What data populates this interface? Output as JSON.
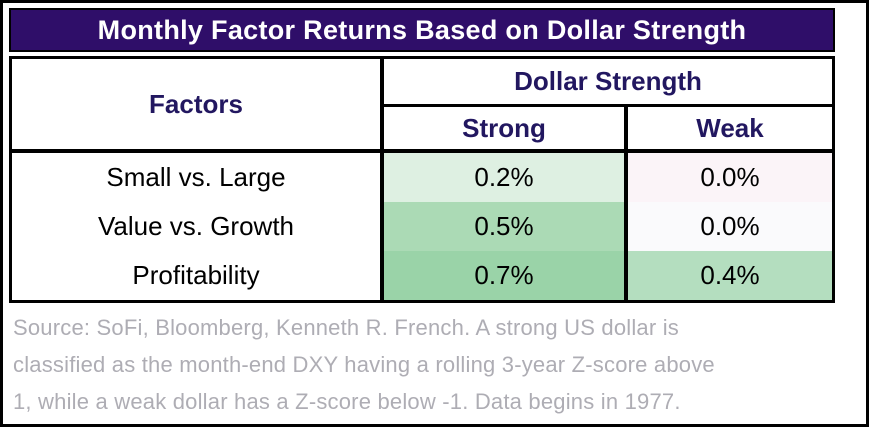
{
  "title_bar": {
    "text": "Monthly Factor Returns Based on Dollar Strength",
    "bg": "#2F0E69",
    "text_color": "#FFFFFF"
  },
  "table": {
    "factors_header": "Factors",
    "group_header": "Dollar Strength",
    "col_headers": [
      "Strong",
      "Weak"
    ],
    "header_text_color": "#221760",
    "rows": [
      {
        "label": "Small vs. Large",
        "strong": "0.2%",
        "weak": "0.0%",
        "strong_bg": "#DEF0E2",
        "weak_bg": "#FBF4F8"
      },
      {
        "label": "Value vs. Growth",
        "strong": "0.5%",
        "weak": "0.0%",
        "strong_bg": "#ABDAB5",
        "weak_bg": "#FAFAFC"
      },
      {
        "label": "Profitability",
        "strong": "0.7%",
        "weak": "0.4%",
        "strong_bg": "#9AD3A8",
        "weak_bg": "#B4DEBF"
      }
    ]
  },
  "source": {
    "text_color": "#AEADB4",
    "lines": [
      "Source: SoFi, Bloomberg, Kenneth R. French. A strong US dollar is",
      "classified as the month-end DXY having a rolling 3-year Z-score above",
      "1, while a weak dollar has a Z-score below -1. Data begins in 1977."
    ]
  },
  "chart_data": {
    "type": "table",
    "title": "Monthly Factor Returns Based on Dollar Strength",
    "row_header": "Factors",
    "column_group_header": "Dollar Strength",
    "columns": [
      "Strong",
      "Weak"
    ],
    "rows": [
      "Small vs. Large",
      "Value vs. Growth",
      "Profitability"
    ],
    "values_percent": [
      [
        0.2,
        0.0
      ],
      [
        0.5,
        0.0
      ],
      [
        0.7,
        0.4
      ]
    ],
    "display_values": [
      [
        "0.2%",
        "0.0%"
      ],
      [
        "0.5%",
        "0.0%"
      ],
      [
        "0.7%",
        "0.4%"
      ]
    ],
    "cell_shading": "green intensity scales with return magnitude",
    "notes": "Source: SoFi, Bloomberg, Kenneth R. French. A strong US dollar is classified as the month-end DXY having a rolling 3-year Z-score above 1, while a weak dollar has a Z-score below -1. Data begins in 1977."
  }
}
